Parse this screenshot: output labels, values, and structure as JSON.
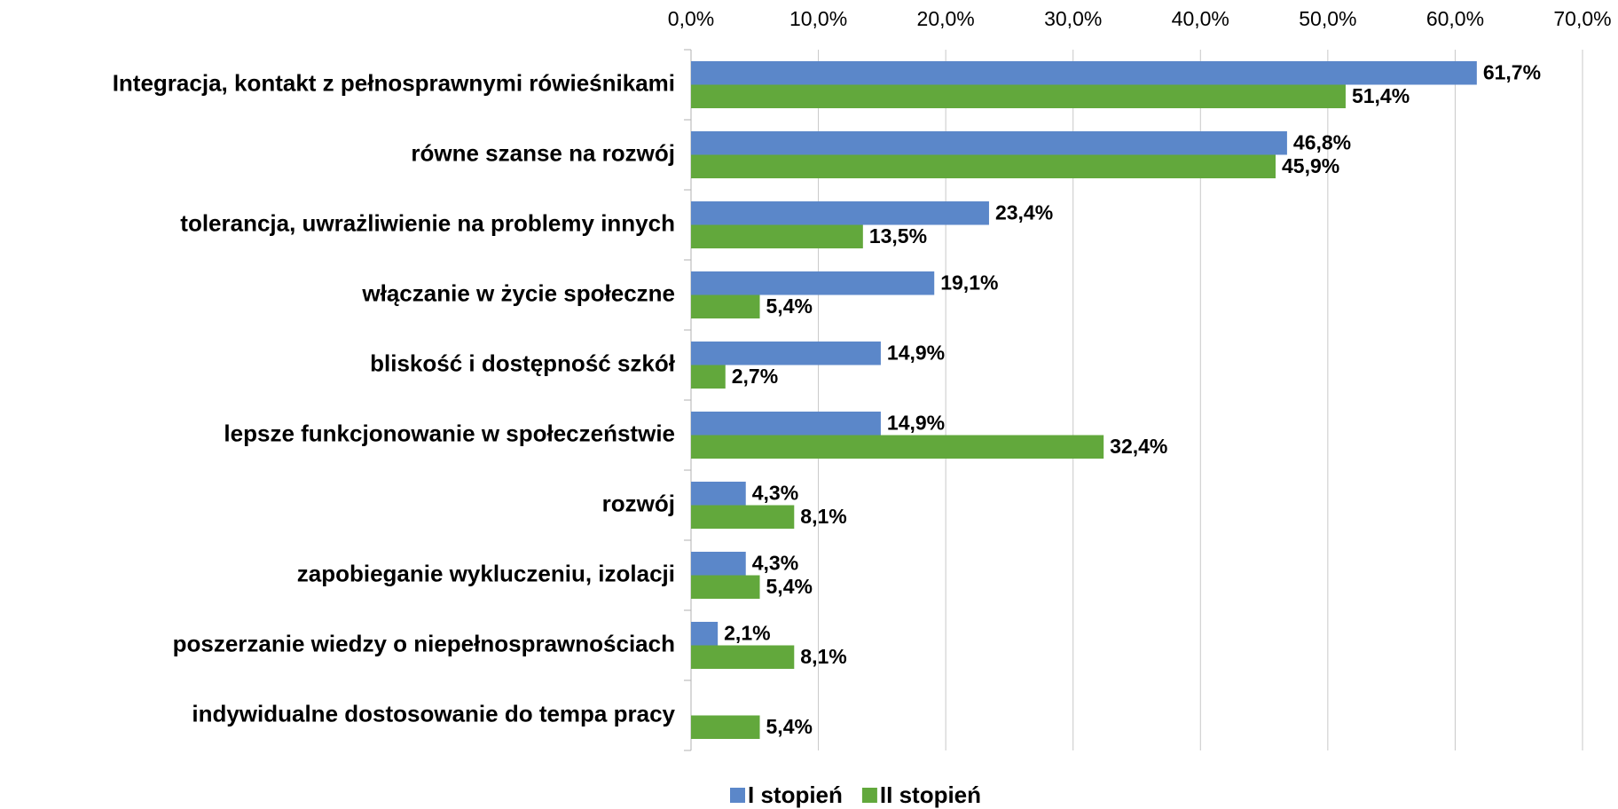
{
  "chart_data": {
    "type": "hbar",
    "categories": [
      "Integracja, kontakt z pełnosprawnymi rówieśnikami",
      "równe szanse na rozwój",
      "tolerancja, uwrażliwienie na problemy innych",
      "włączanie w życie społeczne",
      "bliskość i dostępność szkół",
      "lepsze funkcjonowanie w społeczeństwie",
      "rozwój",
      "zapobieganie wykluczeniu, izolacji",
      "poszerzanie wiedzy o niepełnosprawnościach",
      "indywidualne dostosowanie do tempa pracy"
    ],
    "series": [
      {
        "name": "I stopień",
        "color": "#5b87c9",
        "values": [
          61.7,
          46.8,
          23.4,
          19.1,
          14.9,
          14.9,
          4.3,
          4.3,
          2.1,
          null
        ],
        "value_labels": [
          "61,7%",
          "46,8%",
          "23,4%",
          "19,1%",
          "14,9%",
          "14,9%",
          "4,3%",
          "4,3%",
          "2,1%",
          null
        ]
      },
      {
        "name": "II stopień",
        "color": "#62a83c",
        "values": [
          51.4,
          45.9,
          13.5,
          5.4,
          2.7,
          32.4,
          8.1,
          5.4,
          8.1,
          5.4
        ],
        "value_labels": [
          "51,4%",
          "45,9%",
          "13,5%",
          "5,4%",
          "2,7%",
          "32,4%",
          "8,1%",
          "5,4%",
          "8,1%",
          "5,4%"
        ]
      }
    ],
    "xlim": [
      0,
      70
    ],
    "xticks": [
      {
        "value": 0,
        "label": "0,0%"
      },
      {
        "value": 10,
        "label": "10,0%"
      },
      {
        "value": 20,
        "label": "20,0%"
      },
      {
        "value": 30,
        "label": "30,0%"
      },
      {
        "value": 40,
        "label": "40,0%"
      },
      {
        "value": 50,
        "label": "50,0%"
      },
      {
        "value": 60,
        "label": "60,0%"
      },
      {
        "value": 70,
        "label": "70,0%"
      }
    ],
    "grid": true,
    "legend": "bottom"
  }
}
